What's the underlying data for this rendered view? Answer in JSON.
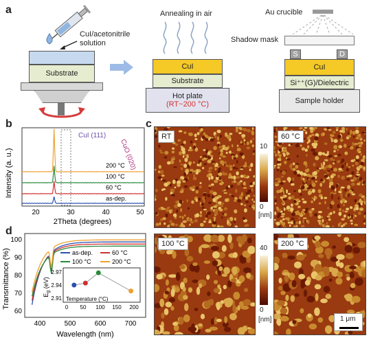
{
  "panels": {
    "a": {
      "letter": "a",
      "syringe_label_1": "CuI/acetonitrile",
      "syringe_label_2": "solution",
      "substrate_left": "Substrate",
      "annealing_label": "Annealing in air",
      "cui_mid": "CuI",
      "substrate_mid": "Substrate",
      "hotplate_1": "Hot plate",
      "hotplate_2": "(RT~200 °C)",
      "crucible_label": "Au crucible",
      "shadow_mask_label": "Shadow mask",
      "source": "S",
      "drain": "D",
      "cui_right": "CuI",
      "dielectric": "Si⁺⁺(G)/Dielectric",
      "sample_holder": "Sample holder"
    },
    "b": {
      "letter": "b",
      "ylabel": "Intensity (a. u.)",
      "xlabel": "2Theta (degrees)",
      "peak_label": "CuI (111)",
      "cuo_label": "CuO (020)",
      "xticks": [
        "20",
        "30",
        "40",
        "50"
      ],
      "series_labels": [
        "200 °C",
        "100 °C",
        "60 °C",
        "as-dep."
      ]
    },
    "c": {
      "letter": "c",
      "images": [
        "RT",
        "60 °C",
        "100 °C",
        "200 °C"
      ],
      "scale_top_max": "10",
      "scale_top_min": "0",
      "scale_bottom_max": "40",
      "scale_bottom_min": "0",
      "unit_top": "[nm]",
      "unit_bottom": "[nm]",
      "scalebar": "1 μm"
    },
    "d": {
      "letter": "d",
      "ylabel": "Transmittance (%)",
      "xlabel": "Wavelength (nm)",
      "yticks": [
        "60",
        "70",
        "80",
        "90",
        "100"
      ],
      "xticks": [
        "400",
        "500",
        "600",
        "700"
      ],
      "legend": [
        "as-dep.",
        "60 °C",
        "100 °C",
        "200 °C"
      ],
      "inset_ylabel": "E",
      "inset_ysub": "g",
      "inset_yunit": " (eV)",
      "inset_yticks": [
        "2.97",
        "2.94",
        "2.91"
      ],
      "inset_xticks": [
        "0",
        "50",
        "100",
        "150",
        "200"
      ],
      "inset_xlabel": "Temperature (°C)"
    }
  },
  "chart_data": [
    {
      "type": "line",
      "panel": "b",
      "xlabel": "2Theta (degrees)",
      "ylabel": "Intensity (a. u.)",
      "xlim": [
        15,
        55
      ],
      "series": [
        {
          "name": "200 °C",
          "color": "#f0a030",
          "peak_x": 25.5,
          "peak_height": 1.0
        },
        {
          "name": "100 °C",
          "color": "#2a8a3a",
          "peak_x": 25.5,
          "peak_height": 0.35
        },
        {
          "name": "60 °C",
          "color": "#d03030",
          "peak_x": 25.5,
          "peak_height": 0.25
        },
        {
          "name": "as-dep.",
          "color": "#2a50b0",
          "peak_x": 25.5,
          "peak_height": 0.15
        }
      ]
    },
    {
      "type": "line",
      "panel": "d",
      "xlabel": "Wavelength (nm)",
      "ylabel": "Transmittance (%)",
      "xlim": [
        300,
        800
      ],
      "ylim": [
        60,
        100
      ],
      "series": [
        {
          "name": "as-dep.",
          "color": "#2a50b0"
        },
        {
          "name": "60 °C",
          "color": "#d03030"
        },
        {
          "name": "100 °C",
          "color": "#2a8a3a"
        },
        {
          "name": "200 °C",
          "color": "#f0a030"
        }
      ]
    },
    {
      "type": "scatter",
      "panel": "d-inset",
      "xlabel": "Temperature (°C)",
      "ylabel": "Eg (eV)",
      "xlim": [
        0,
        220
      ],
      "ylim": [
        2.905,
        2.985
      ],
      "x": [
        25,
        60,
        100,
        200
      ],
      "y": [
        2.945,
        2.95,
        2.976,
        2.93
      ],
      "colors": [
        "#2a50b0",
        "#d03030",
        "#2a8a3a",
        "#f0a030"
      ]
    }
  ]
}
